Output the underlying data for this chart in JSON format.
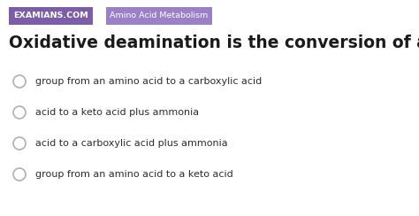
{
  "background_color": "#ffffff",
  "header_tag1_text": "EXAMIANS.COM",
  "header_tag1_color": "#7b5ea7",
  "header_tag2_text": "Amino Acid Metabolism",
  "header_tag2_color": "#9b7fc7",
  "title": "Oxidative deamination is the conversion of an amino",
  "title_color": "#1a1a1a",
  "title_fontsize": 13.5,
  "options": [
    "group from an amino acid to a carboxylic acid",
    "acid to a keto acid plus ammonia",
    "acid to a carboxylic acid plus ammonia",
    "group from an amino acid to a keto acid"
  ],
  "option_color": "#2c2c2c",
  "option_fontsize": 8.0,
  "circle_edge_color": "#b0b0b0",
  "tag_text_color": "#ffffff",
  "tag1_fontsize": 6.8,
  "tag2_fontsize": 6.8
}
